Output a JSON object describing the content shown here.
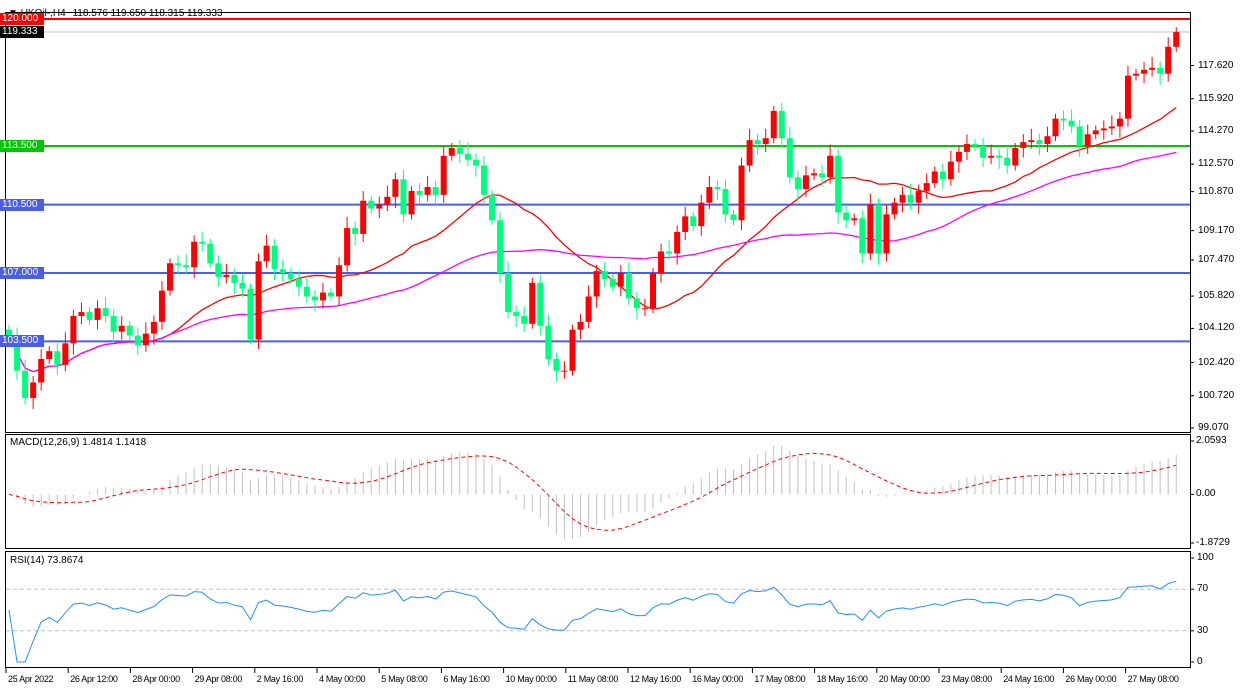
{
  "header": {
    "symbol": "UKOil-,H4",
    "ohlc": "118.576 119.650 118.315 119.333"
  },
  "colors": {
    "up_candle": "#ff0000",
    "down_candle": "#00ff7f",
    "ma_fast": "#ff0000",
    "ma_slow": "#ff00ff",
    "macd_hist": "#c0c0c0",
    "macd_signal": "#ff0000",
    "rsi": "#1e90ff",
    "level_red": "#ff0000",
    "level_green": "#00c800",
    "level_blue": "#4a5ee8"
  },
  "chart_data": [
    {
      "type": "candlestick",
      "title": "UKOil-,H4",
      "ylim": [
        99.07,
        120.0
      ],
      "price_ticks": [
        "117.620",
        "115.920",
        "114.270",
        "112.570",
        "110.870",
        "109.170",
        "107.470",
        "105.820",
        "104.120",
        "102.420",
        "100.720",
        "99.070"
      ],
      "levels": [
        {
          "value": "120.000",
          "color": "#ff0000"
        },
        {
          "value": "113.500",
          "color": "#00c800"
        },
        {
          "value": "110.500",
          "color": "#4a5ee8"
        },
        {
          "value": "107.000",
          "color": "#4a5ee8"
        },
        {
          "value": "103.500",
          "color": "#4a5ee8"
        }
      ],
      "current_price": "119.333",
      "time_labels": [
        "25 Apr 2022",
        "26 Apr 12:00",
        "28 Apr 00:00",
        "29 Apr 08:00",
        "2 May 16:00",
        "4 May 00:00",
        "5 May 08:00",
        "6 May 16:00",
        "10 May 00:00",
        "11 May 08:00",
        "12 May 16:00",
        "16 May 00:00",
        "17 May 08:00",
        "18 May 16:00",
        "20 May 00:00",
        "23 May 08:00",
        "24 May 16:00",
        "26 May 00:00",
        "27 May 08:00"
      ],
      "close": [
        103.8,
        102.0,
        100.6,
        101.4,
        102.6,
        103.0,
        102.3,
        103.4,
        104.8,
        105.0,
        104.6,
        105.2,
        104.8,
        104.0,
        104.3,
        103.8,
        103.3,
        103.9,
        104.5,
        106.1,
        107.5,
        107.4,
        107.3,
        108.6,
        108.5,
        107.5,
        106.8,
        106.9,
        106.5,
        106.2,
        103.6,
        107.6,
        108.4,
        107.2,
        107.0,
        106.7,
        106.3,
        105.8,
        105.6,
        106.0,
        105.8,
        107.4,
        109.3,
        109.0,
        110.7,
        110.3,
        110.5,
        110.9,
        111.8,
        110.0,
        111.2,
        111.0,
        111.4,
        111.0,
        113.0,
        113.4,
        113.1,
        112.8,
        112.5,
        111.0,
        109.7,
        107.0,
        105.0,
        104.8,
        104.4,
        106.5,
        104.3,
        102.6,
        102.0,
        102.0,
        104.1,
        104.5,
        105.8,
        107.1,
        106.7,
        106.3,
        107.0,
        105.7,
        105.2,
        105.2,
        107.0,
        108.1,
        108.0,
        109.1,
        109.9,
        109.4,
        110.6,
        111.4,
        111.3,
        110.0,
        109.7,
        112.5,
        113.8,
        113.6,
        113.9,
        115.3,
        113.9,
        111.9,
        111.3,
        112.0,
        112.1,
        111.9,
        113.0,
        110.1,
        109.7,
        109.8,
        108.0,
        110.5,
        108.0,
        110.0,
        110.6,
        111.0,
        110.6,
        111.2,
        111.6,
        112.2,
        111.8,
        112.7,
        113.2,
        113.6,
        113.5,
        112.9,
        113.0,
        112.9,
        112.5,
        113.4,
        113.7,
        113.8,
        113.6,
        114.0,
        114.9,
        114.8,
        114.5,
        113.5,
        114.1,
        114.3,
        114.4,
        114.5,
        114.9,
        117.1,
        117.2,
        117.4,
        117.5,
        117.2,
        118.576,
        119.333
      ]
    },
    {
      "type": "bar",
      "title": "MACD(12,26,9) 1.4814 1.1418",
      "ylim": [
        -1.8729,
        2.0593
      ],
      "ticks": [
        "2.0593",
        "0.00",
        "-1.8729"
      ]
    },
    {
      "type": "line",
      "title": "RSI(14) 73.8674",
      "ylim": [
        0,
        100
      ],
      "ticks": [
        "100",
        "70",
        "30",
        "0"
      ]
    }
  ]
}
